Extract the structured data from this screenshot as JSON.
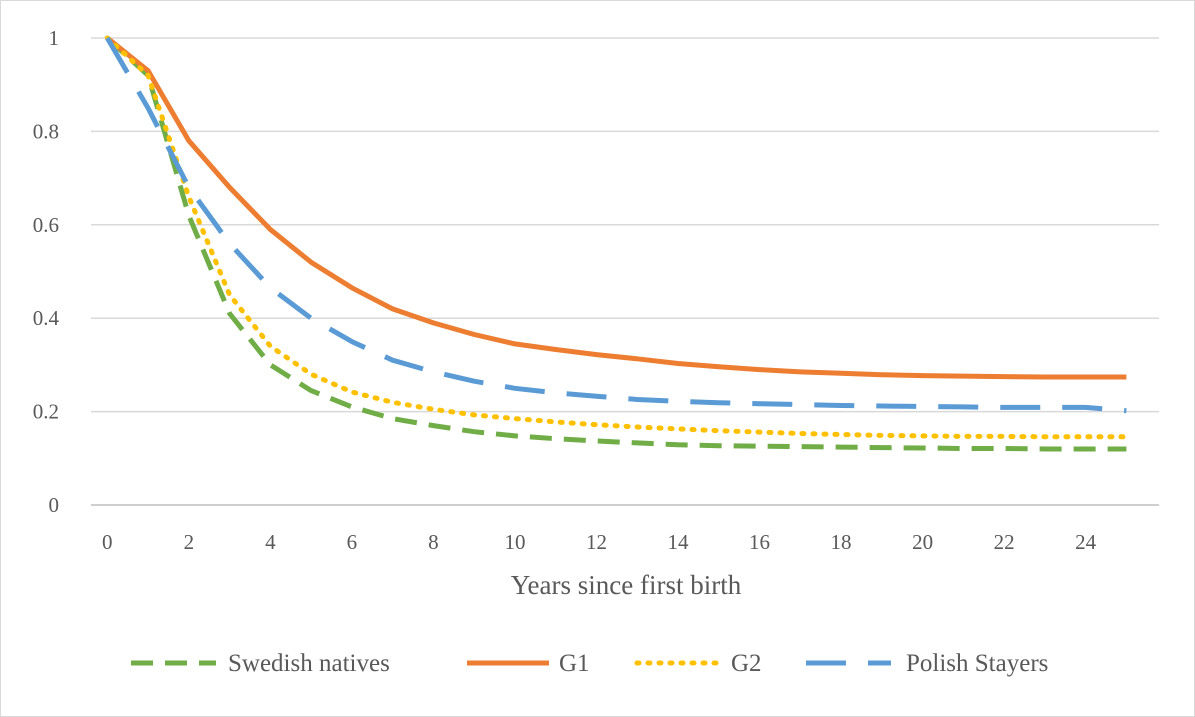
{
  "chart_data": {
    "type": "line",
    "title": "",
    "xlabel": "Years since first birth",
    "ylabel": "",
    "xlim": [
      -0.4,
      25.8
    ],
    "ylim": [
      0,
      1
    ],
    "x_ticks": [
      0,
      2,
      4,
      6,
      8,
      10,
      12,
      14,
      16,
      18,
      20,
      22,
      24
    ],
    "x_tick_labels": [
      "0",
      "2",
      "4",
      "6",
      "8",
      "10",
      "12",
      "14",
      "16",
      "18",
      "20",
      "22",
      "24"
    ],
    "y_ticks": [
      0,
      0.2,
      0.4,
      0.6,
      0.8,
      1
    ],
    "y_tick_labels": [
      "0",
      "0.2",
      "0.4",
      "0.6",
      "0.8",
      "1"
    ],
    "grid": "horizontal",
    "legend_position": "bottom",
    "x": [
      0,
      1,
      2,
      3,
      4,
      5,
      6,
      7,
      8,
      9,
      10,
      11,
      12,
      13,
      14,
      15,
      16,
      17,
      18,
      19,
      20,
      21,
      22,
      23,
      24,
      25
    ],
    "series": [
      {
        "name": "Swedish natives",
        "color": "#70ad47",
        "dash": "dash",
        "values": [
          1.0,
          0.92,
          0.62,
          0.41,
          0.3,
          0.245,
          0.21,
          0.185,
          0.17,
          0.157,
          0.148,
          0.142,
          0.137,
          0.133,
          0.129,
          0.127,
          0.126,
          0.125,
          0.124,
          0.123,
          0.122,
          0.121,
          0.121,
          0.12,
          0.12,
          0.12
        ]
      },
      {
        "name": "G1",
        "color": "#ed7d31",
        "dash": "solid",
        "values": [
          1.0,
          0.93,
          0.78,
          0.68,
          0.59,
          0.52,
          0.465,
          0.42,
          0.39,
          0.365,
          0.345,
          0.333,
          0.322,
          0.313,
          0.303,
          0.296,
          0.29,
          0.285,
          0.282,
          0.279,
          0.277,
          0.276,
          0.275,
          0.274,
          0.274,
          0.274
        ]
      },
      {
        "name": "G2",
        "color": "#ffc000",
        "dash": "dot",
        "values": [
          1.0,
          0.92,
          0.66,
          0.45,
          0.34,
          0.28,
          0.242,
          0.22,
          0.205,
          0.193,
          0.185,
          0.178,
          0.172,
          0.167,
          0.163,
          0.159,
          0.156,
          0.153,
          0.151,
          0.149,
          0.148,
          0.147,
          0.147,
          0.146,
          0.146,
          0.146
        ]
      },
      {
        "name": "Polish Stayers",
        "color": "#5b9bd5",
        "dash": "longdash",
        "values": [
          1.0,
          0.85,
          0.68,
          0.56,
          0.465,
          0.4,
          0.35,
          0.31,
          0.285,
          0.265,
          0.25,
          0.24,
          0.233,
          0.226,
          0.222,
          0.219,
          0.217,
          0.215,
          0.213,
          0.212,
          0.211,
          0.21,
          0.209,
          0.209,
          0.209,
          0.202
        ]
      }
    ]
  }
}
